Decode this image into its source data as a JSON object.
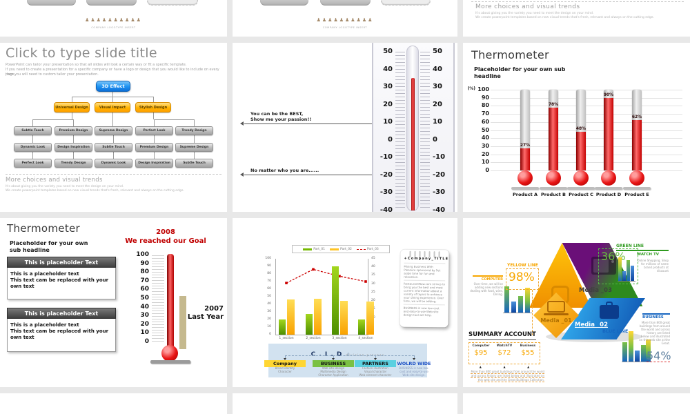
{
  "ui": {
    "logo_caption": "COMPANY LOGOTYPE INSERT",
    "logo_figures": "♟♟♟♟♟♟♟♟♟♟",
    "more_trends": {
      "heading": "More choices and visual trends",
      "line1": "It's about giving you the variety you need to meet the design on your mind.",
      "line2": "We create powerpoint templates based on new visual trends that's fresh, relevant and always on the cutting edge."
    }
  },
  "org_slide": {
    "title": "Click to type slide title",
    "body": [
      "PowerPoint can tailor your presentation so that all slides will look a certain way or fit a specific template.",
      "If you need to create a presentation for a specific company or have a logo or design that you would like to include on every page,",
      "then you will need to custom tailor your presentation."
    ],
    "root": "3D Effect",
    "level2": [
      "Universal Design",
      "Visual Impact",
      "Stylish Design"
    ],
    "grid": [
      [
        "Subtle Touch",
        "Premium Design",
        "Supreme Design",
        "Perfect Look",
        "Trendy Design"
      ],
      [
        "Dynamic Look",
        "Design Inspiration",
        "Subtle Touch",
        "Premium Design",
        "Supreme Design"
      ],
      [
        "Perfect Look",
        "Trendy Design",
        "Dynamic Look",
        "Design Inspiration",
        "Subtle Touch"
      ]
    ]
  },
  "thermo_slide": {
    "callout1": "You can be the BEST, Show me your passion!!",
    "callout2": "No matter who you are......"
  },
  "products_slide": {
    "title": "Thermometer",
    "subheadline": "Placeholder for your own sub headline",
    "axis_unit": "(%)"
  },
  "goal_slide": {
    "title": "Thermometer",
    "subheadline": "Placeholder for your own sub headline",
    "box_header": "This is placeholder Text",
    "box_line1": "This is a placeholder text",
    "box_line2": "This text cam be replaced with your own text",
    "year_label": "2008",
    "goal_label": "We reached our Goal",
    "lastyear_year": "2007",
    "lastyear_label": "Last Year"
  },
  "combo_slide": {
    "note": {
      "title": "+Company_TITLE",
      "p1": "Mixing Business With Pleasure sponsored by Set aside time for fun and relaxation.",
      "p2": "RestaurantNow.com strives to bring you the best and most current information about a variety of topics to enhance your dining experience. Over time, we will be adding.",
      "p3": "BUSINESS is new low-cost and easy-to-use Web-site design tool will help."
    },
    "cid": {
      "title": "C . I . D",
      "subtitle": "division process",
      "items": [
        {
          "label": "Company",
          "desc": "Brand identity\nCharacter",
          "hl": "#ffd633",
          "text_color": "#111111"
        },
        {
          "label": "BUSINESS",
          "desc": "Web site Design\nMultimedia Design\nCharacter Application",
          "hl": "#7ac143",
          "text_color": "#111111"
        },
        {
          "label": "PARTNERS",
          "desc": "Fashion illustration\nVisual character\nWeb element character",
          "hl": "#5bd0e0",
          "text_color": "#111111"
        },
        {
          "label": "WOLRD WIDE",
          "desc": "BUSINESS is new low-\ncost and easy-to-use\nWeb-site design.",
          "hl": "none",
          "text_color": "#1a4fc4"
        }
      ]
    }
  },
  "infographic_slide": {
    "yellow": {
      "line_label": "YELLOW LINE",
      "pct": "98%",
      "tag": "COMPUTER",
      "desc": "Over time, we will be adding new sections dealing with food, wine, Dining."
    },
    "green": {
      "line_label": "GREEN LINE",
      "pct": "36%",
      "tag": "WATCH TV",
      "desc": "Online Shopping. Shop for millions of name brand products at discount"
    },
    "blue": {
      "line_label": "BLUE LINE",
      "pct": "54%",
      "tag": "BUSINESS",
      "desc": "More than 800 great buildings from around the world and across history are listed below and illustrated on this web site at the Great."
    },
    "media": [
      "Media _01",
      "Media _02",
      "Media _03"
    ],
    "summary": {
      "title": "SUMMARY ACCOUNT",
      "columns": [
        "Computer",
        "WatchTV",
        "Business"
      ],
      "values": [
        "$95",
        "$72",
        "$55"
      ],
      "footnote": "More than 800 great buildings from around the world and across history are listed below and illustrated on this web site and the Great Buildings Collection."
    }
  },
  "chart_data": [
    {
      "type": "bar",
      "name": "product-thermometer-chart",
      "title": "Thermometer",
      "categories": [
        "Product A",
        "Product B",
        "Product C",
        "Product D",
        "Product E"
      ],
      "values": [
        27,
        78,
        48,
        90,
        62
      ],
      "value_labels": [
        "27%",
        "78%",
        "48%",
        "90%",
        "62%"
      ],
      "ylabel": "(%)",
      "ylim": [
        0,
        100
      ],
      "yticks": [
        100,
        90,
        80,
        70,
        60,
        50,
        40,
        30,
        20,
        10,
        0
      ],
      "grid": true
    },
    {
      "type": "bar",
      "name": "goal-thermometer-chart",
      "title": "2008 We reached our Goal",
      "categories": [
        "2008",
        "2007 Last Year"
      ],
      "values": [
        100,
        53
      ],
      "ylim": [
        0,
        100
      ],
      "yticks": [
        100,
        90,
        80,
        70,
        60,
        50,
        40,
        30,
        20,
        10,
        0
      ]
    },
    {
      "type": "bar+line",
      "name": "section-combo-chart",
      "categories": [
        "1_section",
        "2_section",
        "3_section",
        "4_section"
      ],
      "series": [
        {
          "name": "Part_01",
          "type": "bar",
          "color": "#76b900",
          "values": [
            20,
            27,
            90,
            20
          ]
        },
        {
          "name": "Part_02",
          "type": "bar",
          "color": "#ffc425",
          "values": [
            46,
            47,
            45,
            44
          ]
        },
        {
          "name": "Part_03",
          "type": "line",
          "color": "#cc0000",
          "values": [
            68,
            86,
            77,
            70
          ]
        }
      ],
      "ylim_left": [
        0,
        100
      ],
      "yticks_left": [
        100,
        90,
        80,
        70,
        60,
        50,
        40,
        30,
        20,
        10,
        0
      ],
      "ylim_right": [
        0,
        45
      ],
      "yticks_right": [
        45,
        40,
        35,
        30,
        25,
        20,
        15,
        10,
        5,
        0
      ],
      "legend_position": "top"
    },
    {
      "type": "thermometer",
      "name": "big-thermometer-gauge",
      "value": 35,
      "ticks": [
        50,
        40,
        30,
        20,
        10,
        0,
        -10,
        -20,
        -30,
        -40
      ]
    }
  ]
}
